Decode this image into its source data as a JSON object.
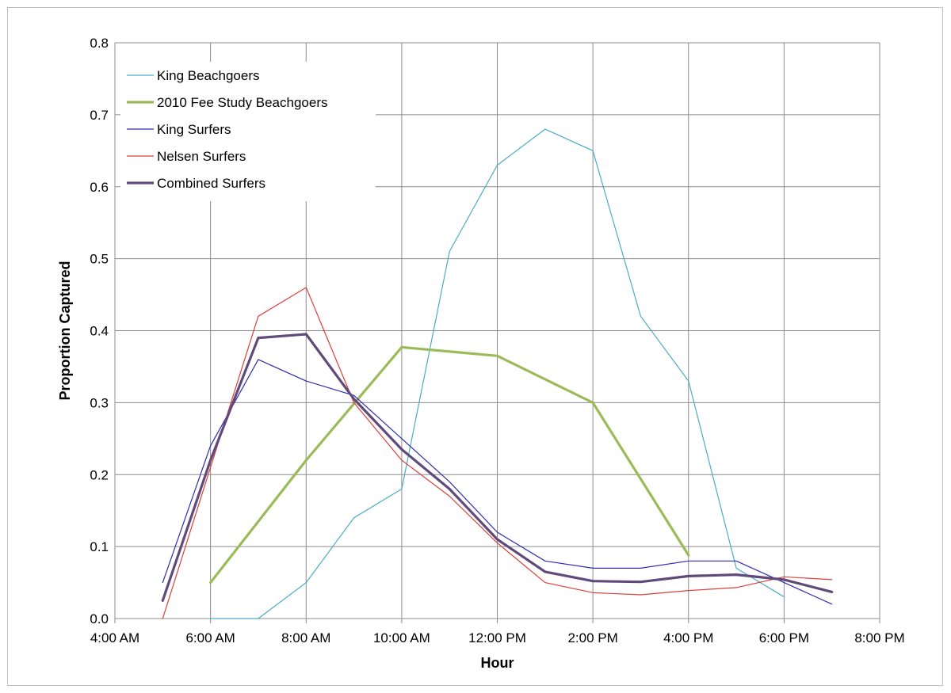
{
  "chart_data": {
    "type": "line",
    "title": "",
    "xlabel": "Hour",
    "ylabel": "Proportion Captured",
    "xlim": [
      4,
      20
    ],
    "ylim": [
      0,
      0.8
    ],
    "grid": true,
    "legend_position": "top-left",
    "x_ticks": [
      {
        "value": 4,
        "label": "4:00 AM"
      },
      {
        "value": 6,
        "label": "6:00 AM"
      },
      {
        "value": 8,
        "label": "8:00 AM"
      },
      {
        "value": 10,
        "label": "10:00 AM"
      },
      {
        "value": 12,
        "label": "12:00 PM"
      },
      {
        "value": 14,
        "label": "2:00 PM"
      },
      {
        "value": 16,
        "label": "4:00 PM"
      },
      {
        "value": 18,
        "label": "6:00 PM"
      },
      {
        "value": 20,
        "label": "8:00 PM"
      }
    ],
    "y_ticks": [
      {
        "value": 0,
        "label": "0.0"
      },
      {
        "value": 0.1,
        "label": "0.1"
      },
      {
        "value": 0.2,
        "label": "0.2"
      },
      {
        "value": 0.3,
        "label": "0.3"
      },
      {
        "value": 0.4,
        "label": "0.4"
      },
      {
        "value": 0.5,
        "label": "0.5"
      },
      {
        "value": 0.6,
        "label": "0.6"
      },
      {
        "value": 0.7,
        "label": "0.7"
      },
      {
        "value": 0.8,
        "label": "0.8"
      }
    ],
    "series": [
      {
        "name": "King Beachgoers",
        "color": "#4bacc6",
        "weight": "thin",
        "points": [
          [
            6,
            0.0
          ],
          [
            7,
            0.0
          ],
          [
            8,
            0.05
          ],
          [
            9,
            0.14
          ],
          [
            10,
            0.18
          ],
          [
            11,
            0.51
          ],
          [
            12,
            0.63
          ],
          [
            13,
            0.68
          ],
          [
            14,
            0.65
          ],
          [
            15,
            0.42
          ],
          [
            16,
            0.33
          ],
          [
            17,
            0.07
          ],
          [
            18,
            0.03
          ]
        ]
      },
      {
        "name": "2010 Fee Study Beachgoers",
        "color": "#9bbb59",
        "weight": "thick",
        "points": [
          [
            6,
            0.05
          ],
          [
            8,
            0.22
          ],
          [
            10,
            0.377
          ],
          [
            12,
            0.365
          ],
          [
            14,
            0.3
          ],
          [
            16,
            0.088
          ]
        ]
      },
      {
        "name": "King Surfers",
        "color": "#2e2eb0",
        "weight": "thin",
        "points": [
          [
            5,
            0.05
          ],
          [
            6,
            0.24
          ],
          [
            7,
            0.36
          ],
          [
            8,
            0.33
          ],
          [
            9,
            0.31
          ],
          [
            10,
            0.25
          ],
          [
            11,
            0.19
          ],
          [
            12,
            0.12
          ],
          [
            13,
            0.08
          ],
          [
            14,
            0.07
          ],
          [
            15,
            0.07
          ],
          [
            16,
            0.08
          ],
          [
            17,
            0.08
          ],
          [
            18,
            0.05
          ],
          [
            19,
            0.02
          ]
        ]
      },
      {
        "name": "Nelsen Surfers",
        "color": "#d9403a",
        "weight": "thin",
        "points": [
          [
            5,
            0.0
          ],
          [
            6,
            0.21
          ],
          [
            7,
            0.42
          ],
          [
            8,
            0.46
          ],
          [
            9,
            0.3
          ],
          [
            10,
            0.22
          ],
          [
            11,
            0.17
          ],
          [
            12,
            0.105
          ],
          [
            13,
            0.05
          ],
          [
            14,
            0.036
          ],
          [
            15,
            0.033
          ],
          [
            16,
            0.039
          ],
          [
            17,
            0.043
          ],
          [
            18,
            0.058
          ],
          [
            19,
            0.054
          ]
        ]
      },
      {
        "name": "Combined Surfers",
        "color": "#604a7b",
        "weight": "thick",
        "points": [
          [
            5,
            0.025
          ],
          [
            6,
            0.22
          ],
          [
            7,
            0.39
          ],
          [
            8,
            0.395
          ],
          [
            9,
            0.305
          ],
          [
            10,
            0.235
          ],
          [
            11,
            0.18
          ],
          [
            12,
            0.11
          ],
          [
            13,
            0.065
          ],
          [
            14,
            0.052
          ],
          [
            15,
            0.051
          ],
          [
            16,
            0.059
          ],
          [
            17,
            0.061
          ],
          [
            18,
            0.054
          ],
          [
            19,
            0.037
          ]
        ]
      }
    ]
  }
}
